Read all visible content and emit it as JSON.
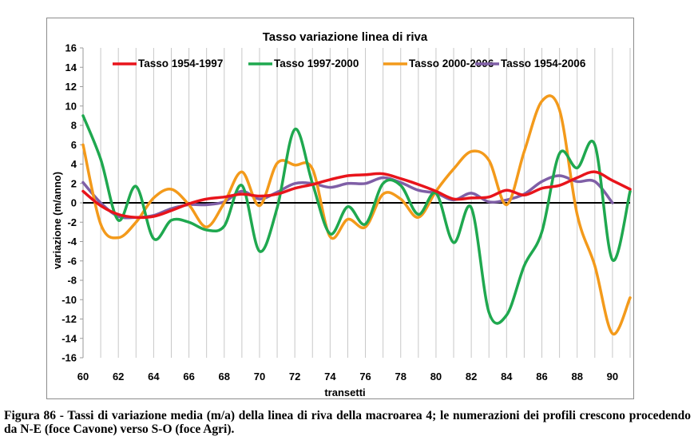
{
  "chart_data": {
    "type": "line",
    "title": "Tasso variazione linea di riva",
    "xlabel": "transetti",
    "ylabel": "variazione (m/anno)",
    "xlim": [
      60,
      91
    ],
    "ylim": [
      -16,
      16
    ],
    "x_ticks": [
      "60",
      "62",
      "64",
      "66",
      "68",
      "70",
      "72",
      "74",
      "76",
      "78",
      "80",
      "82",
      "84",
      "86",
      "88",
      "90"
    ],
    "y_ticks": [
      "16",
      "14",
      "12",
      "10",
      "8",
      "6",
      "4",
      "2",
      "0",
      "-2",
      "-4",
      "-6",
      "-8",
      "-10",
      "-12",
      "-14",
      "-16"
    ],
    "grid": "vertical",
    "legend_position": "top",
    "x": [
      60,
      61,
      62,
      63,
      64,
      65,
      66,
      67,
      68,
      69,
      70,
      71,
      72,
      73,
      74,
      75,
      76,
      77,
      78,
      79,
      80,
      81,
      82,
      83,
      84,
      85,
      86,
      87,
      88,
      89,
      90,
      91
    ],
    "series": [
      {
        "name": "Tasso 1954-1997",
        "color": "#e8141b",
        "values": [
          1.2,
          -0.3,
          -1.2,
          -1.5,
          -1.4,
          -0.8,
          -0.1,
          0.4,
          0.6,
          0.9,
          0.7,
          0.9,
          1.5,
          1.9,
          2.4,
          2.8,
          2.9,
          3.0,
          2.5,
          1.9,
          1.2,
          0.4,
          0.5,
          0.6,
          1.3,
          0.8,
          1.5,
          1.8,
          2.6,
          3.2,
          2.3,
          1.4
        ]
      },
      {
        "name": "Tasso 1997-2000",
        "color": "#1fa84f",
        "values": [
          9.0,
          4.5,
          -1.8,
          1.7,
          -3.7,
          -1.8,
          -2.0,
          -2.8,
          -2.4,
          1.8,
          -5.0,
          -0.5,
          7.6,
          2.0,
          -3.2,
          -0.4,
          -2.2,
          2.0,
          1.8,
          -1.2,
          1.0,
          -4.1,
          -0.5,
          -11.3,
          -11.6,
          -6.5,
          -3.0,
          5.1,
          3.6,
          6.0,
          -5.9,
          1.2
        ]
      },
      {
        "name": "Tasso 2000-2006",
        "color": "#f39a1b",
        "values": [
          6.0,
          -2.2,
          -3.6,
          -2.0,
          0.5,
          1.4,
          -0.2,
          -2.5,
          0.0,
          3.2,
          -0.3,
          4.1,
          3.9,
          3.5,
          -3.5,
          -1.7,
          -2.5,
          0.9,
          0.4,
          -1.5,
          1.2,
          3.5,
          5.3,
          4.4,
          -0.2,
          5.3,
          10.5,
          9.6,
          -1.2,
          -6.5,
          -13.5,
          -9.8
        ]
      },
      {
        "name": "Tasso 1954-2006",
        "color": "#7f5fa6",
        "values": [
          2.1,
          0.0,
          -1.4,
          -1.5,
          -1.3,
          -0.6,
          -0.2,
          -0.2,
          0.1,
          1.2,
          0.4,
          1.1,
          2.0,
          2.0,
          1.6,
          2.0,
          2.0,
          2.6,
          2.1,
          1.3,
          1.0,
          0.3,
          1.0,
          0.1,
          0.3,
          0.9,
          2.2,
          2.8,
          2.2,
          2.2,
          0.0,
          null
        ]
      }
    ]
  },
  "caption": "Figura 86 - Tassi di variazione media (m/a) della linea di riva della macroarea 4; le numerazioni dei profili crescono procedendo da N-E (foce Cavone) verso S-O (foce Agri)."
}
